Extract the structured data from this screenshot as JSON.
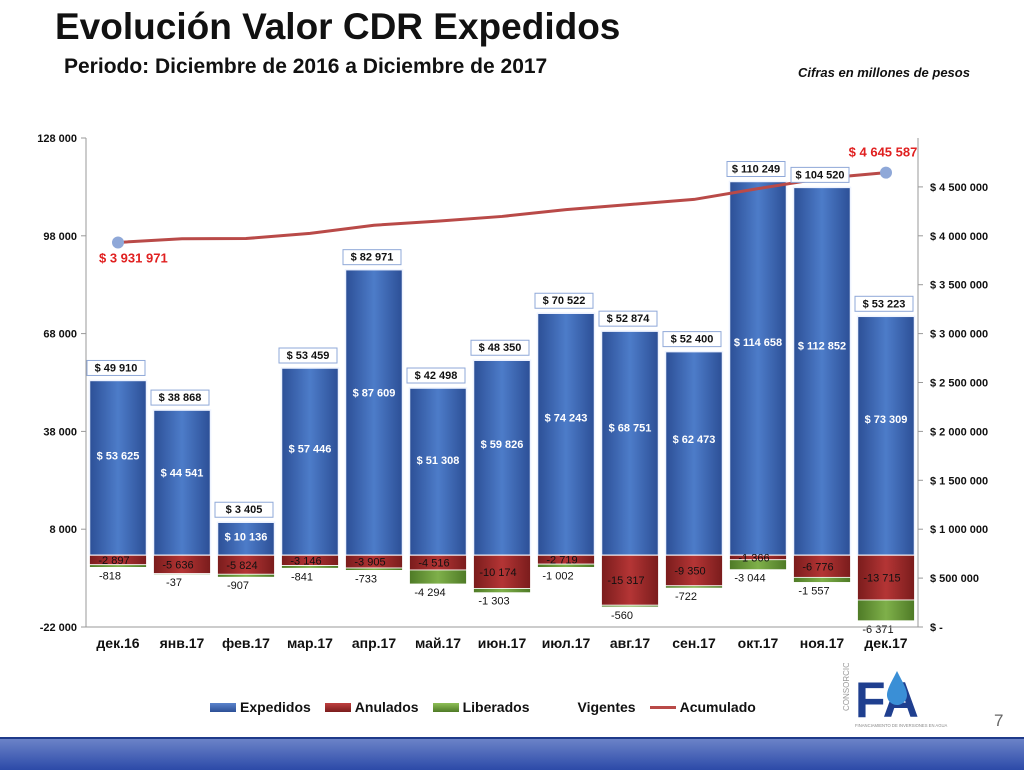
{
  "slide": {
    "title": "Evolución Valor CDR Expedidos",
    "subtitle": "Periodo:  Diciembre de 2016 a Diciembre de 2017",
    "units_note": "Cifras en millones de pesos",
    "page_number": "7",
    "logo_text": "FA",
    "logo_side_text": "CONSORCIO",
    "logo_tagline": "FINANCIAMIENTO DE INVERSIONES EN AGUA"
  },
  "colors": {
    "expedidos": "#3d66b5",
    "anulados": "#9e2a2a",
    "liberados": "#6a9a3a",
    "acumulado": "#b94a48",
    "acum_label": "#e02020",
    "marker": "#8fa8d8"
  },
  "chart_data": {
    "type": "bar",
    "categories": [
      "дек.16",
      "янв.17",
      "фев.17",
      "мар.17",
      "апр.17",
      "май.17",
      "июн.17",
      "июл.17",
      "авг.17",
      "сен.17",
      "окт.17",
      "ноя.17",
      "дек.17"
    ],
    "left_axis": {
      "min": -22000,
      "max": 128000,
      "ticks": [
        "128 000",
        "98 000",
        "68 000",
        "38 000",
        "8 000",
        "-22 000"
      ]
    },
    "right_axis": {
      "min": 0,
      "max": 5000000,
      "ticks": [
        "$ -",
        "$ 500 000",
        "$ 1 000 000",
        "$ 1 500 000",
        "$ 2 000 000",
        "$ 2 500 000",
        "$ 3 000 000",
        "$ 3 500 000",
        "$ 4 000 000",
        "$ 4 500 000"
      ]
    },
    "legend": [
      "Expedidos",
      "Anulados",
      "Liberados",
      "Vigentes",
      "Acumulado"
    ],
    "expedidos": [
      53625,
      44541,
      10136,
      57446,
      87609,
      51308,
      59826,
      74243,
      68751,
      62473,
      114658,
      112852,
      73309
    ],
    "expedidos_labels": [
      "$ 53 625",
      "$ 44 541",
      "$ 10 136",
      "$ 57 446",
      "$ 87 609",
      "$ 51 308",
      "$ 59 826",
      "$ 74 243",
      "$ 68 751",
      "$ 62 473",
      "$ 114 658",
      "$ 112 852",
      "$ 73 309"
    ],
    "anulados": [
      -2897,
      -5636,
      -5824,
      -3146,
      -3905,
      -4516,
      -10174,
      -2719,
      -15317,
      -9350,
      -1366,
      -6776,
      -13715
    ],
    "anulados_labels": [
      "-2 897",
      "-5 636",
      "-5 824",
      "-3 146",
      "-3 905",
      "-4 516",
      "-10 174",
      "-2 719",
      "-15 317",
      "-9 350",
      "-1 366",
      "-6 776",
      "-13 715"
    ],
    "liberados": [
      -818,
      -37,
      -907,
      -841,
      -733,
      -4294,
      -1303,
      -1002,
      -560,
      -722,
      -3044,
      -1557,
      -6371
    ],
    "liberados_labels": [
      "-818",
      "-37",
      "-907",
      "-841",
      "-733",
      "-4 294",
      "-1 303",
      "-1 002",
      "-560",
      "-722",
      "-3 044",
      "-1 557",
      "-6 371"
    ],
    "vigentes": [
      49910,
      38868,
      3405,
      53459,
      82971,
      42498,
      48350,
      70522,
      52874,
      52400,
      110249,
      104520,
      53223
    ],
    "vigentes_labels": [
      "$ 49 910",
      "$ 38 868",
      "$ 3 405",
      "$ 53 459",
      "$ 82 971",
      "$ 42 498",
      "$ 48 350",
      "$ 70 522",
      "$ 52 874",
      "$ 52 400",
      "$ 110 249",
      "$ 104 520",
      "$ 53 223"
    ],
    "acumulado": [
      3931971,
      3970000,
      3972000,
      4025000,
      4108000,
      4150000,
      4198000,
      4268000,
      4320000,
      4372000,
      4482000,
      4587000,
      4645587
    ],
    "acumulado_first_label": "$ 3 931 971",
    "acumulado_last_label": "$ 4 645 587"
  }
}
